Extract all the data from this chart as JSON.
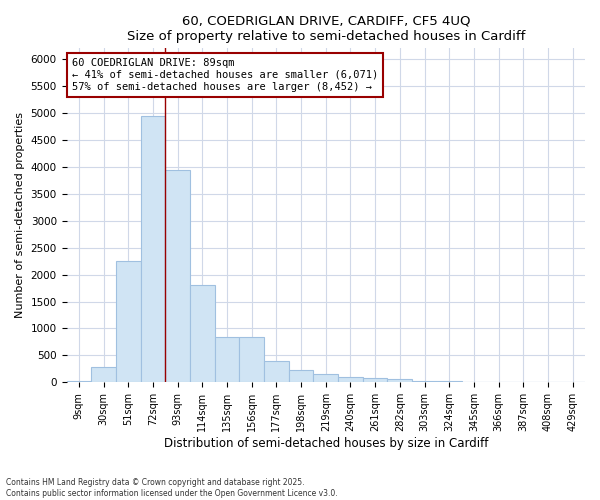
{
  "title1": "60, COEDRIGLAN DRIVE, CARDIFF, CF5 4UQ",
  "title2": "Size of property relative to semi-detached houses in Cardiff",
  "xlabel": "Distribution of semi-detached houses by size in Cardiff",
  "ylabel": "Number of semi-detached properties",
  "bin_labels": [
    "9sqm",
    "30sqm",
    "51sqm",
    "72sqm",
    "93sqm",
    "114sqm",
    "135sqm",
    "156sqm",
    "177sqm",
    "198sqm",
    "219sqm",
    "240sqm",
    "261sqm",
    "282sqm",
    "303sqm",
    "324sqm",
    "345sqm",
    "366sqm",
    "387sqm",
    "408sqm",
    "429sqm"
  ],
  "bar_values": [
    30,
    280,
    2250,
    4950,
    3950,
    1800,
    850,
    850,
    400,
    220,
    150,
    100,
    80,
    60,
    30,
    20,
    10,
    5,
    3,
    2,
    2
  ],
  "bar_color": "#d0e4f4",
  "bar_edge_color": "#a0c0e0",
  "property_line_bin": 4,
  "annotation_text1": "60 COEDRIGLAN DRIVE: 89sqm",
  "annotation_text2": "← 41% of semi-detached houses are smaller (6,071)",
  "annotation_text3": "57% of semi-detached houses are larger (8,452) →",
  "ylim": [
    0,
    6200
  ],
  "yticks": [
    0,
    500,
    1000,
    1500,
    2000,
    2500,
    3000,
    3500,
    4000,
    4500,
    5000,
    5500,
    6000
  ],
  "footnote1": "Contains HM Land Registry data © Crown copyright and database right 2025.",
  "footnote2": "Contains public sector information licensed under the Open Government Licence v3.0.",
  "bg_color": "#ffffff",
  "plot_bg_color": "#ffffff",
  "grid_color": "#d0d8e8"
}
